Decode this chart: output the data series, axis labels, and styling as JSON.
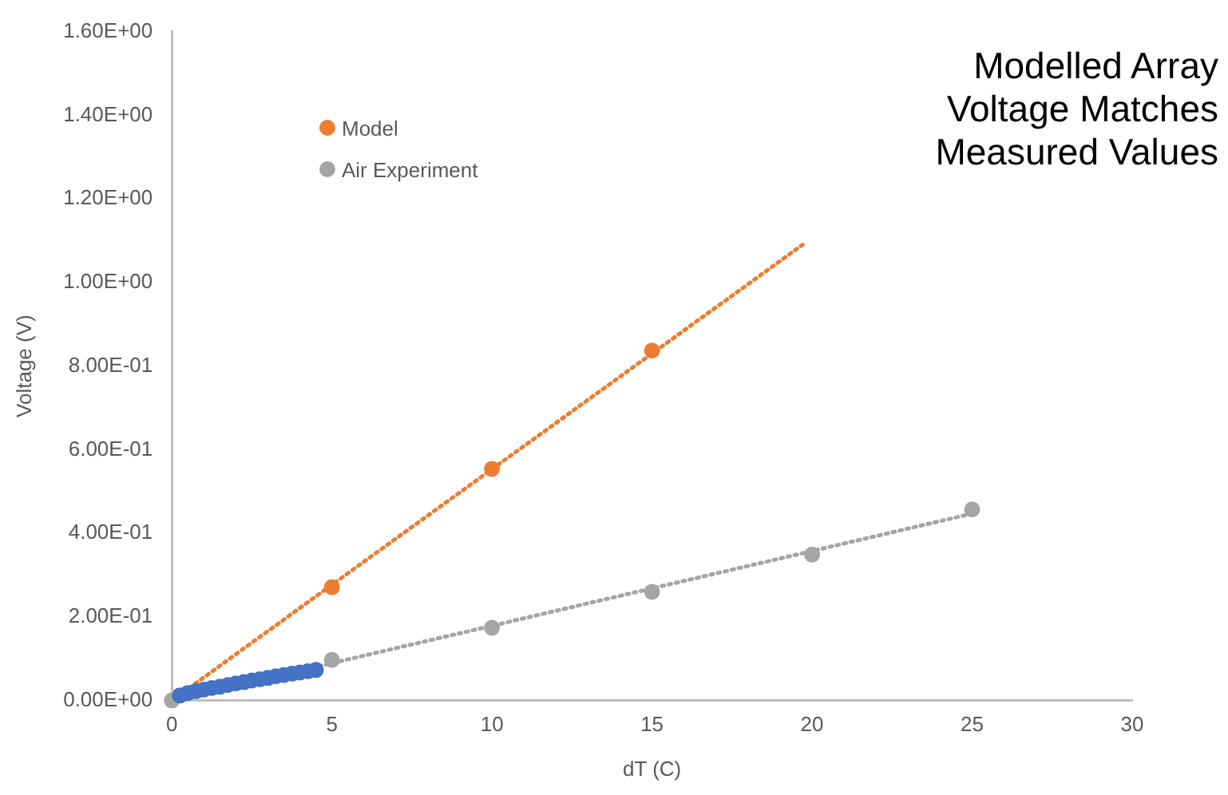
{
  "chart_data": {
    "type": "scatter",
    "title": "Modelled Array Voltage Matches Measured Values",
    "xlabel": "dT (C)",
    "ylabel": "Voltage (V)",
    "xlim": [
      0,
      30
    ],
    "xticks": [
      0,
      5,
      10,
      15,
      20,
      25,
      30
    ],
    "ylim": [
      0,
      1.6
    ],
    "yticks": [
      {
        "value": 0,
        "label": "0.00E+00"
      },
      {
        "value": 0.2,
        "label": "2.00E-01"
      },
      {
        "value": 0.4,
        "label": "4.00E-01"
      },
      {
        "value": 0.6,
        "label": "6.00E-01"
      },
      {
        "value": 0.8,
        "label": "8.00E-01"
      },
      {
        "value": 1.0,
        "label": "1.00E+00"
      },
      {
        "value": 1.2,
        "label": "1.20E+00"
      },
      {
        "value": 1.4,
        "label": "1.40E+00"
      },
      {
        "value": 1.6,
        "label": "1.60E+00"
      }
    ],
    "grid": false,
    "legend": "top left",
    "marker": "circle",
    "series": [
      {
        "type": "line",
        "color": "#ed7d31",
        "marker": "none",
        "line_style": "dotted",
        "x": [
          0,
          19.7
        ],
        "values": [
          0,
          1.09
        ]
      },
      {
        "type": "line",
        "color": "#a5a5a5",
        "marker": "none",
        "line_style": "dotted",
        "x": [
          0,
          25
        ],
        "values": [
          0,
          0.447
        ]
      },
      {
        "color": "#4472c4",
        "x": [
          0.25,
          0.5,
          0.75,
          1,
          1.25,
          1.5,
          1.75,
          2,
          2.25,
          2.5,
          2.75,
          3,
          3.25,
          3.5,
          3.75,
          4,
          4.25,
          4.5
        ],
        "values": [
          0.012,
          0.018,
          0.022,
          0.026,
          0.03,
          0.033,
          0.037,
          0.041,
          0.044,
          0.048,
          0.051,
          0.054,
          0.058,
          0.061,
          0.064,
          0.067,
          0.07,
          0.073
        ]
      },
      {
        "name": "Model",
        "color": "#ed7d31",
        "x": [
          5,
          10,
          15
        ],
        "values": [
          0.271,
          0.554,
          0.837
        ]
      },
      {
        "name": "Air Experiment",
        "color": "#a5a5a5",
        "x": [
          0,
          5,
          10,
          15,
          20,
          25
        ],
        "values": [
          0,
          0.097,
          0.174,
          0.26,
          0.349,
          0.457
        ]
      }
    ]
  }
}
